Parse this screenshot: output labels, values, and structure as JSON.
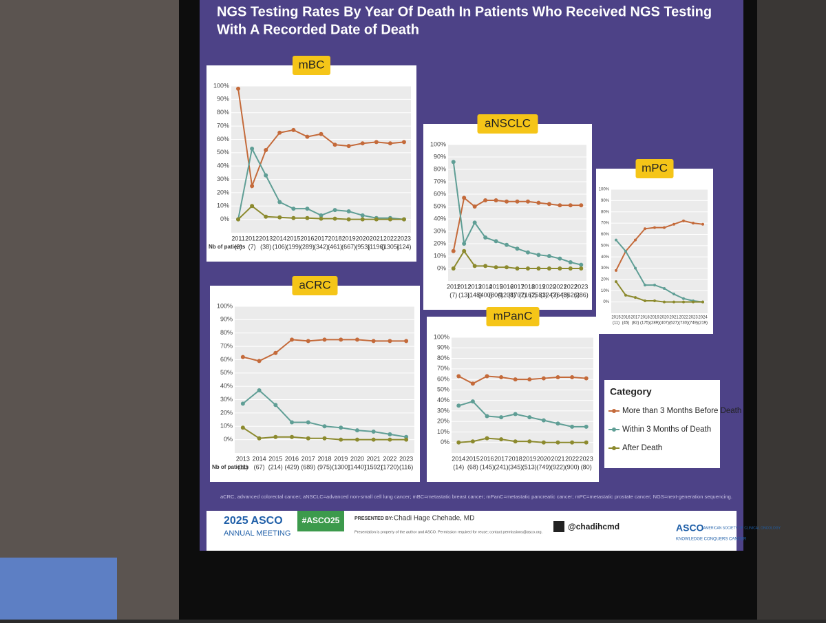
{
  "slide": {
    "title_lines": [
      "NGS Testing Rates By Year Of Death In Patients Who Received NGS Testing",
      "With A Recorded Date of Death"
    ],
    "footnote": "aCRC, advanced colorectal cancer; aNSCLC=advanced non-small cell lung cancer; mBC=metastatic breast cancer; mPanC=metastatic pancreatic cancer; mPC=metastatic prostate cancer; NGS=next-generation sequencing.",
    "meeting_year": "2025 ASCO",
    "meeting_name": "ANNUAL MEETING",
    "hashtag": "#ASCO25",
    "presented_by": "PRESENTED BY:",
    "presenter": "Chadi Hage Chehade, MD",
    "disclaimer": "Presentation is property of the author and ASCO. Permission required for reuse; contact permissions@asco.org.",
    "handle": "@chadihcmd",
    "org": "ASCO",
    "org_name": "AMERICAN SOCIETY OF CLINICAL ONCOLOGY",
    "org_tagline": "KNOWLEDGE CONQUERS CANCER"
  },
  "legend": {
    "title": "Category"
  },
  "chart_data": [
    {
      "type": "line",
      "title": "mBC",
      "x_label": "Nb of patients",
      "categories": [
        "2011",
        "2012",
        "2013",
        "2014",
        "2015",
        "2016",
        "2017",
        "2018",
        "2019",
        "2020",
        "2021",
        "2022",
        "2023"
      ],
      "patient_counts": [
        "(2)",
        "(7)",
        "(38)",
        "(106)",
        "(199)",
        "(289)",
        "(342)",
        "(461)",
        "(667)",
        "(953)",
        "(1196)",
        "(1305)",
        "(124)"
      ],
      "ylim": [
        -10,
        100
      ],
      "yticks": [
        {
          "value": 0,
          "label": "0%"
        },
        {
          "value": 10,
          "label": "10%"
        },
        {
          "value": 20,
          "label": "20%"
        },
        {
          "value": 30,
          "label": "30%"
        },
        {
          "value": 40,
          "label": "40%"
        },
        {
          "value": 50,
          "label": "50%"
        },
        {
          "value": 60,
          "label": "60%"
        },
        {
          "value": 70,
          "label": "70%"
        },
        {
          "value": 80,
          "label": "80%"
        },
        {
          "value": 90,
          "label": "90%"
        },
        {
          "value": 100,
          "label": "100%"
        }
      ],
      "series": [
        {
          "name": "More than 3 Months Before Death",
          "color": "#c46a3a",
          "values": [
            98,
            25,
            52,
            65,
            67,
            62,
            64,
            56,
            55,
            57,
            58,
            57,
            58
          ]
        },
        {
          "name": "Within 3 Months of Death",
          "color": "#5f9e95",
          "values": [
            0,
            53,
            33,
            13,
            8,
            8,
            3,
            7,
            6,
            3,
            1,
            1,
            0
          ]
        },
        {
          "name": "After Death",
          "color": "#8c8a2e",
          "values": [
            0,
            10,
            2,
            1.5,
            1,
            1,
            0.5,
            0.5,
            0,
            0,
            0,
            0,
            0
          ]
        }
      ]
    },
    {
      "type": "line",
      "title": "aNSCLC",
      "categories": [
        "2011",
        "2012",
        "2013",
        "2014",
        "2015",
        "2016",
        "2017",
        "2018",
        "2019",
        "2020",
        "2021",
        "2022",
        "2023"
      ],
      "patient_counts": [
        "(7)",
        "(13)",
        "(148)",
        "(400)",
        "(804)",
        "(1208)",
        "(1707)",
        "(2167)",
        "(2581)",
        "(3247)",
        "(3648)",
        "(3626)",
        "(286)"
      ],
      "ylim": [
        -10,
        100
      ],
      "yticks": [
        {
          "value": 0,
          "label": "0%"
        },
        {
          "value": 10,
          "label": "10%"
        },
        {
          "value": 20,
          "label": "20%"
        },
        {
          "value": 30,
          "label": "30%"
        },
        {
          "value": 40,
          "label": "40%"
        },
        {
          "value": 50,
          "label": "50%"
        },
        {
          "value": 60,
          "label": "60%"
        },
        {
          "value": 70,
          "label": "70%"
        },
        {
          "value": 80,
          "label": "80%"
        },
        {
          "value": 90,
          "label": "90%"
        },
        {
          "value": 100,
          "label": "100%"
        }
      ],
      "series": [
        {
          "name": "More than 3 Months Before Death",
          "color": "#c46a3a",
          "values": [
            14,
            57,
            50,
            55,
            55,
            54,
            54,
            54,
            53,
            52,
            51,
            51,
            51
          ]
        },
        {
          "name": "Within 3 Months of Death",
          "color": "#5f9e95",
          "values": [
            86,
            20,
            37,
            25,
            22,
            19,
            16,
            13,
            11,
            10,
            8,
            5,
            3
          ]
        },
        {
          "name": "After Death",
          "color": "#8c8a2e",
          "values": [
            0,
            14,
            2,
            2,
            1,
            1,
            0,
            0,
            0,
            0,
            0,
            0,
            0
          ]
        }
      ]
    },
    {
      "type": "line",
      "title": "mPC",
      "categories": [
        "2015",
        "2016",
        "2017",
        "2018",
        "2019",
        "2020",
        "2021",
        "2022",
        "2023",
        "2024"
      ],
      "patient_counts": [
        "(11)",
        "(45)",
        "(82)",
        "(175)",
        "(289)",
        "(407)",
        "(627)",
        "(730)",
        "(749)",
        "(219)"
      ],
      "ylim": [
        -10,
        100
      ],
      "yticks": [
        {
          "value": 0,
          "label": "0%"
        },
        {
          "value": 10,
          "label": "10%"
        },
        {
          "value": 20,
          "label": "20%"
        },
        {
          "value": 30,
          "label": "30%"
        },
        {
          "value": 40,
          "label": "40%"
        },
        {
          "value": 50,
          "label": "50%"
        },
        {
          "value": 60,
          "label": "60%"
        },
        {
          "value": 70,
          "label": "70%"
        },
        {
          "value": 80,
          "label": "80%"
        },
        {
          "value": 90,
          "label": "90%"
        },
        {
          "value": 100,
          "label": "100%"
        }
      ],
      "series": [
        {
          "name": "More than 3 Months Before Death",
          "color": "#c46a3a",
          "values": [
            28,
            45,
            55,
            65,
            66,
            66,
            69,
            72,
            70,
            69
          ]
        },
        {
          "name": "Within 3 Months of Death",
          "color": "#5f9e95",
          "values": [
            55,
            45,
            30,
            15,
            15,
            12,
            7,
            3,
            1,
            0
          ]
        },
        {
          "name": "After Death",
          "color": "#8c8a2e",
          "values": [
            18,
            6,
            4,
            1,
            1,
            0,
            0,
            0,
            0,
            0
          ]
        }
      ]
    },
    {
      "type": "line",
      "title": "aCRC",
      "x_label": "Nb of patients",
      "categories": [
        "2013",
        "2014",
        "2015",
        "2016",
        "2017",
        "2018",
        "2019",
        "2020",
        "2021",
        "2022",
        "2023"
      ],
      "patient_counts": [
        "(11)",
        "(67)",
        "(214)",
        "(429)",
        "(689)",
        "(975)",
        "(1300)",
        "(1440)",
        "(1592)",
        "(1720)",
        "(116)"
      ],
      "ylim": [
        -10,
        100
      ],
      "yticks": [
        {
          "value": 0,
          "label": "0%"
        },
        {
          "value": 10,
          "label": "10%"
        },
        {
          "value": 20,
          "label": "20%"
        },
        {
          "value": 30,
          "label": "30%"
        },
        {
          "value": 40,
          "label": "40%"
        },
        {
          "value": 50,
          "label": "50%"
        },
        {
          "value": 60,
          "label": "60%"
        },
        {
          "value": 70,
          "label": "70%"
        },
        {
          "value": 80,
          "label": "80%"
        },
        {
          "value": 90,
          "label": "90%"
        },
        {
          "value": 100,
          "label": "100%"
        }
      ],
      "series": [
        {
          "name": "More than 3 Months Before Death",
          "color": "#c46a3a",
          "values": [
            62,
            59,
            65,
            75,
            74,
            75,
            75,
            75,
            74,
            74,
            74
          ]
        },
        {
          "name": "Within 3 Months of Death",
          "color": "#5f9e95",
          "values": [
            27,
            37,
            26,
            13,
            13,
            10,
            9,
            7,
            6,
            4,
            2
          ]
        },
        {
          "name": "After Death",
          "color": "#8c8a2e",
          "values": [
            9,
            1,
            2,
            2,
            1,
            1,
            0,
            0,
            0,
            0,
            0
          ]
        }
      ]
    },
    {
      "type": "line",
      "title": "mPanC",
      "categories": [
        "2014",
        "2015",
        "2016",
        "2017",
        "2018",
        "2019",
        "2020",
        "2021",
        "2022",
        "2023"
      ],
      "patient_counts": [
        "(14)",
        "(68)",
        "(145)",
        "(241)",
        "(345)",
        "(513)",
        "(749)",
        "(922)",
        "(900)",
        "(80)"
      ],
      "ylim": [
        -10,
        100
      ],
      "yticks": [
        {
          "value": 0,
          "label": "0%"
        },
        {
          "value": 10,
          "label": "10%"
        },
        {
          "value": 20,
          "label": "20%"
        },
        {
          "value": 30,
          "label": "30%"
        },
        {
          "value": 40,
          "label": "40%"
        },
        {
          "value": 50,
          "label": "50%"
        },
        {
          "value": 60,
          "label": "60%"
        },
        {
          "value": 70,
          "label": "70%"
        },
        {
          "value": 80,
          "label": "80%"
        },
        {
          "value": 90,
          "label": "90%"
        },
        {
          "value": 100,
          "label": "100%"
        }
      ],
      "series": [
        {
          "name": "More than 3 Months Before Death",
          "color": "#c46a3a",
          "values": [
            63,
            56,
            63,
            62,
            60,
            60,
            61,
            62,
            62,
            61
          ]
        },
        {
          "name": "Within 3 Months of Death",
          "color": "#5f9e95",
          "values": [
            35,
            39,
            25,
            24,
            27,
            24,
            21,
            18,
            15,
            15
          ]
        },
        {
          "name": "After Death",
          "color": "#8c8a2e",
          "values": [
            0,
            1,
            4,
            3,
            1,
            1,
            0,
            0,
            0,
            0
          ]
        }
      ]
    }
  ]
}
